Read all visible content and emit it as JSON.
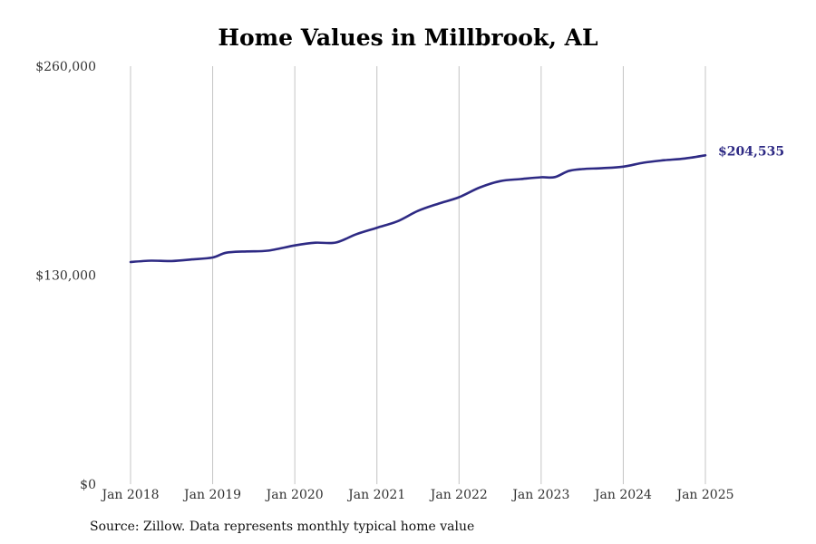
{
  "chart_data": {
    "type": "line",
    "title": "Home Values in Millbrook, AL",
    "xlabel": "",
    "ylabel": "",
    "x_ticks": [
      "Jan 2018",
      "Jan 2019",
      "Jan 2020",
      "Jan 2021",
      "Jan 2022",
      "Jan 2023",
      "Jan 2024",
      "Jan 2025"
    ],
    "y_ticks": [
      {
        "value": 0,
        "label": "$0"
      },
      {
        "value": 130000,
        "label": "$130,000"
      },
      {
        "value": 260000,
        "label": "$260,000"
      }
    ],
    "ylim": [
      0,
      260000
    ],
    "xlim": [
      "2018-01",
      "2025-01"
    ],
    "grid": {
      "vertical": true,
      "horizontal": false
    },
    "series": [
      {
        "color": "#2e2a84",
        "points": [
          {
            "x": "2018-01",
            "y": 138200
          },
          {
            "x": "2018-04",
            "y": 139000
          },
          {
            "x": "2018-07",
            "y": 138800
          },
          {
            "x": "2018-10",
            "y": 139800
          },
          {
            "x": "2019-01",
            "y": 141000
          },
          {
            "x": "2019-03",
            "y": 144000
          },
          {
            "x": "2019-06",
            "y": 144800
          },
          {
            "x": "2019-09",
            "y": 145200
          },
          {
            "x": "2020-01",
            "y": 148500
          },
          {
            "x": "2020-04",
            "y": 150200
          },
          {
            "x": "2020-07",
            "y": 150300
          },
          {
            "x": "2020-10",
            "y": 155500
          },
          {
            "x": "2021-01",
            "y": 159500
          },
          {
            "x": "2021-04",
            "y": 163500
          },
          {
            "x": "2021-07",
            "y": 170000
          },
          {
            "x": "2021-10",
            "y": 174500
          },
          {
            "x": "2022-01",
            "y": 178500
          },
          {
            "x": "2022-04",
            "y": 184500
          },
          {
            "x": "2022-07",
            "y": 188500
          },
          {
            "x": "2022-10",
            "y": 189800
          },
          {
            "x": "2023-01",
            "y": 190900
          },
          {
            "x": "2023-03",
            "y": 191000
          },
          {
            "x": "2023-05",
            "y": 194800
          },
          {
            "x": "2023-07",
            "y": 196000
          },
          {
            "x": "2023-10",
            "y": 196600
          },
          {
            "x": "2024-01",
            "y": 197500
          },
          {
            "x": "2024-04",
            "y": 200000
          },
          {
            "x": "2024-07",
            "y": 201500
          },
          {
            "x": "2024-10",
            "y": 202600
          },
          {
            "x": "2025-01",
            "y": 204535
          }
        ]
      }
    ],
    "end_label": "$204,535",
    "source": "Source: Zillow. Data represents monthly typical home value"
  }
}
